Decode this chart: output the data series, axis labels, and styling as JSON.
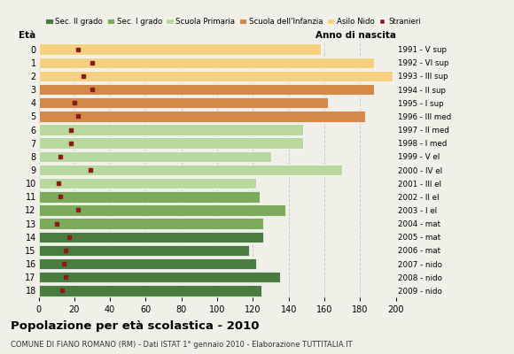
{
  "ages": [
    18,
    17,
    16,
    15,
    14,
    13,
    12,
    11,
    10,
    9,
    8,
    7,
    6,
    5,
    4,
    3,
    2,
    1,
    0
  ],
  "years": [
    "1991 - V sup",
    "1992 - VI sup",
    "1993 - III sup",
    "1994 - II sup",
    "1995 - I sup",
    "1996 - III med",
    "1997 - II med",
    "1998 - I med",
    "1999 - V el",
    "2000 - IV el",
    "2001 - III el",
    "2002 - II el",
    "2003 - I el",
    "2004 - mat",
    "2005 - mat",
    "2006 - mat",
    "2007 - nido",
    "2008 - nido",
    "2009 - nido"
  ],
  "bar_values": [
    125,
    135,
    122,
    118,
    126,
    126,
    138,
    124,
    122,
    170,
    130,
    148,
    148,
    183,
    162,
    188,
    198,
    188,
    158
  ],
  "stranieri": [
    13,
    15,
    14,
    15,
    17,
    10,
    22,
    12,
    11,
    29,
    12,
    18,
    18,
    22,
    20,
    30,
    25,
    30,
    22
  ],
  "bar_colors": [
    "#4a7c3f",
    "#4a7c3f",
    "#4a7c3f",
    "#4a7c3f",
    "#4a7c3f",
    "#7aaa5a",
    "#7aaa5a",
    "#7aaa5a",
    "#b8d8a0",
    "#b8d8a0",
    "#b8d8a0",
    "#b8d8a0",
    "#b8d8a0",
    "#d4894a",
    "#d4894a",
    "#d4894a",
    "#f5d080",
    "#f5d080",
    "#f5d080"
  ],
  "stranieri_color": "#8b1a1a",
  "grid_color": "#cccccc",
  "bg_color": "#f0f0e8",
  "title": "Popolazione per età scolastica - 2010",
  "subtitle": "COMUNE DI FIANO ROMANO (RM) - Dati ISTAT 1° gennaio 2010 - Elaborazione TUTTITALIA.IT",
  "xlabel_eta": "Età",
  "xlabel_anno": "Anno di nascita",
  "legend_labels": [
    "Sec. II grado",
    "Sec. I grado",
    "Scuola Primaria",
    "Scuola dell'Infanzia",
    "Asilo Nido",
    "Stranieri"
  ],
  "legend_colors": [
    "#4a7c3f",
    "#7aaa5a",
    "#b8d8a0",
    "#d4894a",
    "#f5d080",
    "#8b1a1a"
  ],
  "xlim": [
    0,
    200
  ],
  "xticks": [
    0,
    20,
    40,
    60,
    80,
    100,
    120,
    140,
    160,
    180,
    200
  ]
}
